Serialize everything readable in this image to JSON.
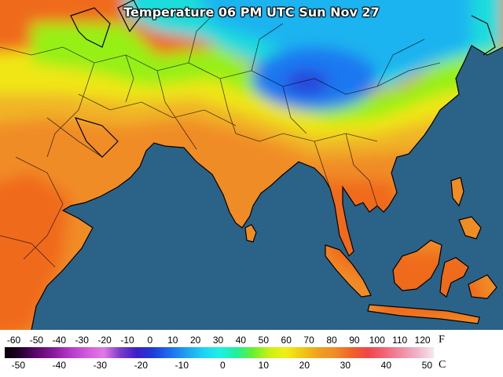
{
  "title": "Temperature 06 PM UTC Sun Nov 27",
  "legend": {
    "fahrenheit_unit": "F",
    "celsius_unit": "C",
    "fahrenheit_ticks": [
      "-60",
      "-50",
      "-40",
      "-30",
      "-20",
      "-10",
      "0",
      "10",
      "20",
      "30",
      "40",
      "50",
      "60",
      "70",
      "80",
      "90",
      "100",
      "110",
      "120"
    ],
    "celsius_ticks": [
      "-50",
      "-40",
      "-30",
      "-20",
      "-10",
      "0",
      "10",
      "20",
      "30",
      "40",
      "50"
    ],
    "fahrenheit_values": [
      -60,
      -50,
      -40,
      -30,
      -20,
      -10,
      0,
      10,
      20,
      30,
      40,
      50,
      60,
      70,
      80,
      90,
      100,
      110,
      120
    ],
    "celsius_values": [
      -50,
      -40,
      -30,
      -20,
      -10,
      0,
      10,
      20,
      30,
      40,
      50
    ],
    "scale_min_f": -64,
    "scale_max_f": 125,
    "colors": [
      "#000000",
      "#2a0033",
      "#5e0a6e",
      "#8a1a9e",
      "#b43cc8",
      "#d25adc",
      "#e07ae6",
      "#7a3cc8",
      "#3c1ec8",
      "#1e3cdc",
      "#1e6ef0",
      "#1ea0f0",
      "#1ed2f0",
      "#1ef0e6",
      "#1ef0a0",
      "#64f032",
      "#c8f014",
      "#f0f014",
      "#f0c814",
      "#f0a01e",
      "#f08c28",
      "#f06428",
      "#f04646",
      "#f06478",
      "#f08ca0",
      "#f0b4c8",
      "#f8e6f0"
    ]
  },
  "map_colors": {
    "ocean": "#2b6288",
    "hot": "#f06a1e",
    "warm": "#f08c28",
    "mild": "#f0b428",
    "cool": "#f0e614",
    "chilly": "#96f014",
    "cold": "#1edcdc",
    "colder": "#1eb4f0",
    "freezing": "#1e78f0",
    "deep_freeze": "#2846dc"
  }
}
